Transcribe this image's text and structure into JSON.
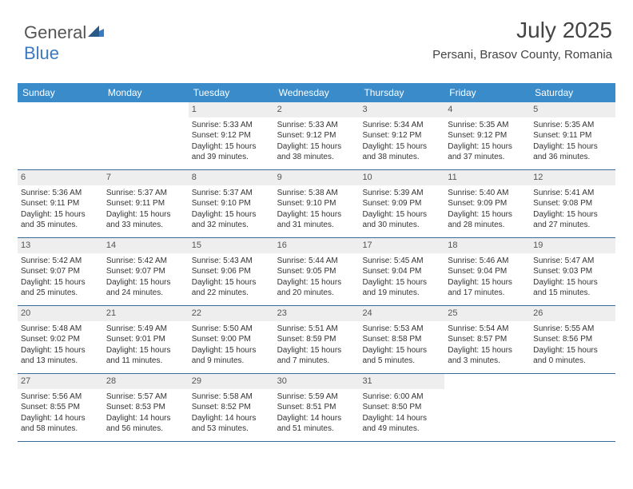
{
  "logo": {
    "text1": "General",
    "text2": "Blue"
  },
  "title": "July 2025",
  "location": "Persani, Brasov County, Romania",
  "colors": {
    "header_bg": "#3a8bc9",
    "header_text": "#ffffff",
    "daynum_bg": "#eeeeee",
    "week_border": "#3a6a9a",
    "logo_blue": "#3a7bbf",
    "body_text": "#333333"
  },
  "day_headers": [
    "Sunday",
    "Monday",
    "Tuesday",
    "Wednesday",
    "Thursday",
    "Friday",
    "Saturday"
  ],
  "weeks": [
    [
      {
        "empty": true
      },
      {
        "empty": true
      },
      {
        "n": "1",
        "sr": "5:33 AM",
        "ss": "9:12 PM",
        "dh": "15",
        "dm": "39"
      },
      {
        "n": "2",
        "sr": "5:33 AM",
        "ss": "9:12 PM",
        "dh": "15",
        "dm": "38"
      },
      {
        "n": "3",
        "sr": "5:34 AM",
        "ss": "9:12 PM",
        "dh": "15",
        "dm": "38"
      },
      {
        "n": "4",
        "sr": "5:35 AM",
        "ss": "9:12 PM",
        "dh": "15",
        "dm": "37"
      },
      {
        "n": "5",
        "sr": "5:35 AM",
        "ss": "9:11 PM",
        "dh": "15",
        "dm": "36"
      }
    ],
    [
      {
        "n": "6",
        "sr": "5:36 AM",
        "ss": "9:11 PM",
        "dh": "15",
        "dm": "35"
      },
      {
        "n": "7",
        "sr": "5:37 AM",
        "ss": "9:11 PM",
        "dh": "15",
        "dm": "33"
      },
      {
        "n": "8",
        "sr": "5:37 AM",
        "ss": "9:10 PM",
        "dh": "15",
        "dm": "32"
      },
      {
        "n": "9",
        "sr": "5:38 AM",
        "ss": "9:10 PM",
        "dh": "15",
        "dm": "31"
      },
      {
        "n": "10",
        "sr": "5:39 AM",
        "ss": "9:09 PM",
        "dh": "15",
        "dm": "30"
      },
      {
        "n": "11",
        "sr": "5:40 AM",
        "ss": "9:09 PM",
        "dh": "15",
        "dm": "28"
      },
      {
        "n": "12",
        "sr": "5:41 AM",
        "ss": "9:08 PM",
        "dh": "15",
        "dm": "27"
      }
    ],
    [
      {
        "n": "13",
        "sr": "5:42 AM",
        "ss": "9:07 PM",
        "dh": "15",
        "dm": "25"
      },
      {
        "n": "14",
        "sr": "5:42 AM",
        "ss": "9:07 PM",
        "dh": "15",
        "dm": "24"
      },
      {
        "n": "15",
        "sr": "5:43 AM",
        "ss": "9:06 PM",
        "dh": "15",
        "dm": "22"
      },
      {
        "n": "16",
        "sr": "5:44 AM",
        "ss": "9:05 PM",
        "dh": "15",
        "dm": "20"
      },
      {
        "n": "17",
        "sr": "5:45 AM",
        "ss": "9:04 PM",
        "dh": "15",
        "dm": "19"
      },
      {
        "n": "18",
        "sr": "5:46 AM",
        "ss": "9:04 PM",
        "dh": "15",
        "dm": "17"
      },
      {
        "n": "19",
        "sr": "5:47 AM",
        "ss": "9:03 PM",
        "dh": "15",
        "dm": "15"
      }
    ],
    [
      {
        "n": "20",
        "sr": "5:48 AM",
        "ss": "9:02 PM",
        "dh": "15",
        "dm": "13"
      },
      {
        "n": "21",
        "sr": "5:49 AM",
        "ss": "9:01 PM",
        "dh": "15",
        "dm": "11"
      },
      {
        "n": "22",
        "sr": "5:50 AM",
        "ss": "9:00 PM",
        "dh": "15",
        "dm": "9"
      },
      {
        "n": "23",
        "sr": "5:51 AM",
        "ss": "8:59 PM",
        "dh": "15",
        "dm": "7"
      },
      {
        "n": "24",
        "sr": "5:53 AM",
        "ss": "8:58 PM",
        "dh": "15",
        "dm": "5"
      },
      {
        "n": "25",
        "sr": "5:54 AM",
        "ss": "8:57 PM",
        "dh": "15",
        "dm": "3"
      },
      {
        "n": "26",
        "sr": "5:55 AM",
        "ss": "8:56 PM",
        "dh": "15",
        "dm": "0"
      }
    ],
    [
      {
        "n": "27",
        "sr": "5:56 AM",
        "ss": "8:55 PM",
        "dh": "14",
        "dm": "58"
      },
      {
        "n": "28",
        "sr": "5:57 AM",
        "ss": "8:53 PM",
        "dh": "14",
        "dm": "56"
      },
      {
        "n": "29",
        "sr": "5:58 AM",
        "ss": "8:52 PM",
        "dh": "14",
        "dm": "53"
      },
      {
        "n": "30",
        "sr": "5:59 AM",
        "ss": "8:51 PM",
        "dh": "14",
        "dm": "51"
      },
      {
        "n": "31",
        "sr": "6:00 AM",
        "ss": "8:50 PM",
        "dh": "14",
        "dm": "49"
      },
      {
        "empty": true
      },
      {
        "empty": true
      }
    ]
  ],
  "labels": {
    "sunrise": "Sunrise:",
    "sunset": "Sunset:",
    "daylight": "Daylight:",
    "hours": "hours",
    "and": "and",
    "minutes": "minutes."
  }
}
